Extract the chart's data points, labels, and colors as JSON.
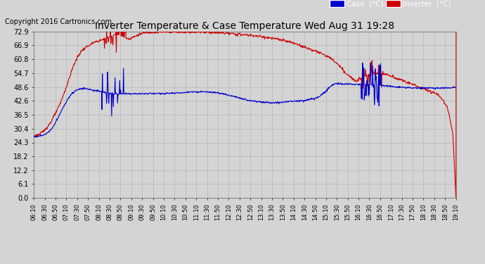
{
  "title": "Inverter Temperature & Case Temperature Wed Aug 31 19:28",
  "copyright": "Copyright 2016 Cartronics.com",
  "bg_color": "#d4d4d4",
  "plot_bg_color": "#d4d4d4",
  "grid_color": "#aaaaaa",
  "case_color": "#0000cc",
  "inverter_color": "#cc0000",
  "ylim": [
    0.0,
    72.9
  ],
  "yticks": [
    0.0,
    6.1,
    12.2,
    18.2,
    24.3,
    30.4,
    36.5,
    42.6,
    48.6,
    54.7,
    60.8,
    66.9,
    72.9
  ],
  "legend_case_label": "Case  (°C)",
  "legend_inverter_label": "Inverter  (°C)",
  "x_tick_labels": [
    "06:10",
    "06:30",
    "06:50",
    "07:10",
    "07:30",
    "07:50",
    "08:10",
    "08:30",
    "08:50",
    "09:10",
    "09:30",
    "09:50",
    "10:10",
    "10:30",
    "10:50",
    "11:10",
    "11:30",
    "11:50",
    "12:10",
    "12:30",
    "12:50",
    "13:10",
    "13:30",
    "13:50",
    "14:10",
    "14:30",
    "14:50",
    "15:10",
    "15:30",
    "15:50",
    "16:10",
    "16:30",
    "16:50",
    "17:10",
    "17:30",
    "17:50",
    "18:10",
    "18:30",
    "18:50",
    "19:10"
  ],
  "inv_data": [
    27.0,
    27.5,
    28.0,
    29.0,
    30.5,
    32.0,
    34.0,
    36.5,
    39.0,
    42.0,
    45.5,
    49.0,
    53.0,
    57.0,
    60.0,
    62.5,
    64.5,
    65.5,
    66.5,
    67.2,
    68.0,
    68.5,
    69.0,
    69.3,
    69.8,
    70.2,
    71.0,
    71.5,
    71.8,
    71.5,
    70.8,
    70.2,
    69.8,
    70.3,
    70.8,
    71.5,
    72.0,
    72.3,
    72.5,
    72.6,
    72.7,
    72.7,
    72.8,
    72.8,
    72.8,
    72.8,
    72.8,
    72.8,
    72.8,
    72.8,
    72.8,
    72.8,
    72.8,
    72.8,
    72.8,
    72.8,
    72.8,
    72.7,
    72.7,
    72.7,
    72.6,
    72.5,
    72.5,
    72.4,
    72.3,
    72.2,
    72.0,
    71.9,
    71.8,
    71.7,
    71.6,
    71.5,
    71.4,
    71.3,
    71.2,
    71.0,
    70.8,
    70.6,
    70.4,
    70.2,
    70.0,
    69.8,
    69.6,
    69.3,
    69.0,
    68.7,
    68.4,
    68.0,
    67.6,
    67.2,
    66.7,
    66.2,
    65.7,
    65.2,
    64.7,
    64.2,
    63.7,
    63.2,
    62.5,
    62.0,
    61.0,
    60.0,
    59.0,
    57.5,
    56.0,
    54.5,
    53.5,
    52.5,
    51.5,
    52.0,
    52.5,
    53.0,
    53.5,
    54.0,
    54.3,
    54.5,
    54.5,
    54.5,
    54.3,
    54.0,
    53.5,
    53.0,
    52.5,
    52.0,
    51.5,
    51.0,
    50.5,
    50.0,
    49.5,
    49.0,
    48.5,
    48.0,
    47.5,
    47.0,
    46.5,
    46.0,
    45.5,
    44.0,
    42.0,
    40.0,
    35.0,
    28.0,
    0.0
  ],
  "case_data": [
    27.0,
    27.0,
    27.2,
    27.5,
    28.0,
    29.0,
    30.5,
    32.5,
    35.0,
    37.5,
    40.0,
    42.5,
    44.5,
    46.0,
    47.0,
    47.5,
    48.0,
    48.0,
    47.8,
    47.5,
    47.2,
    47.0,
    46.8,
    46.5,
    46.2,
    46.0,
    45.8,
    45.7,
    45.7,
    45.7,
    45.7,
    45.7,
    45.7,
    45.7,
    45.7,
    45.7,
    45.7,
    45.7,
    45.7,
    45.8,
    45.8,
    45.8,
    45.8,
    45.8,
    45.8,
    45.8,
    45.9,
    45.9,
    46.0,
    46.1,
    46.2,
    46.3,
    46.4,
    46.5,
    46.5,
    46.5,
    46.5,
    46.5,
    46.5,
    46.4,
    46.3,
    46.2,
    46.0,
    45.8,
    45.5,
    45.2,
    44.8,
    44.5,
    44.2,
    43.9,
    43.5,
    43.2,
    42.9,
    42.7,
    42.5,
    42.3,
    42.2,
    42.0,
    41.9,
    41.8,
    41.8,
    41.8,
    41.8,
    41.9,
    42.0,
    42.2,
    42.3,
    42.4,
    42.5,
    42.6,
    42.7,
    42.8,
    43.0,
    43.2,
    43.5,
    43.8,
    44.5,
    45.5,
    46.5,
    48.0,
    49.2,
    50.0,
    50.2,
    50.2,
    50.0,
    50.0,
    50.0,
    50.0,
    49.8,
    49.8,
    49.8,
    49.8,
    49.8,
    49.7,
    49.6,
    49.5,
    49.5,
    49.3,
    49.2,
    49.0,
    49.0,
    48.8,
    48.7,
    48.6,
    48.5,
    48.4,
    48.3,
    48.2,
    48.2,
    48.2,
    48.2,
    48.2,
    48.2,
    48.2,
    48.2,
    48.2,
    48.2,
    48.2,
    48.2,
    48.2,
    48.2,
    48.5,
    48.6
  ]
}
